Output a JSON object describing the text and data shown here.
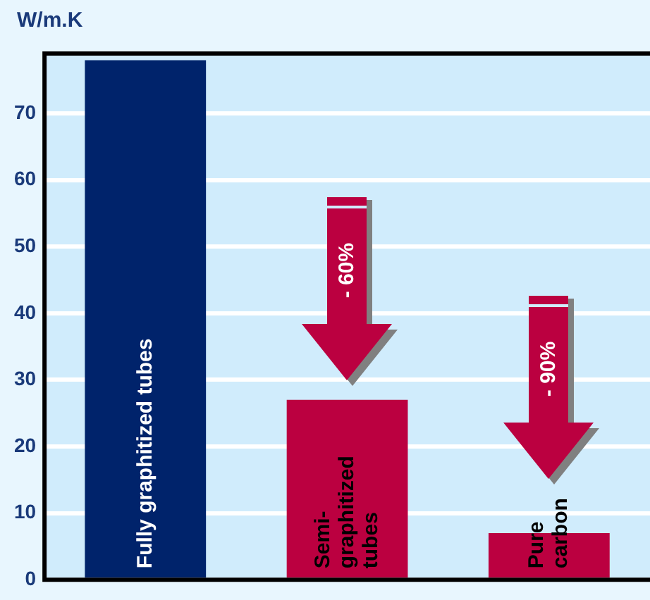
{
  "chart_data": {
    "type": "bar",
    "ylabel": "W/m.K",
    "categories": [
      "Fully graphitized tubes",
      "Semi-\ngraphitized\ntubes",
      "Pure\ncarbon"
    ],
    "values": [
      78,
      27,
      7
    ],
    "colors": [
      "#00236b",
      "#bb0040",
      "#bb0040"
    ],
    "ylim": [
      0,
      79
    ],
    "yticks": [
      0,
      10,
      20,
      30,
      40,
      50,
      60,
      70
    ],
    "grid": "y",
    "tick_labels": "y",
    "annotations": [
      "- 60%",
      "- 90%"
    ]
  }
}
